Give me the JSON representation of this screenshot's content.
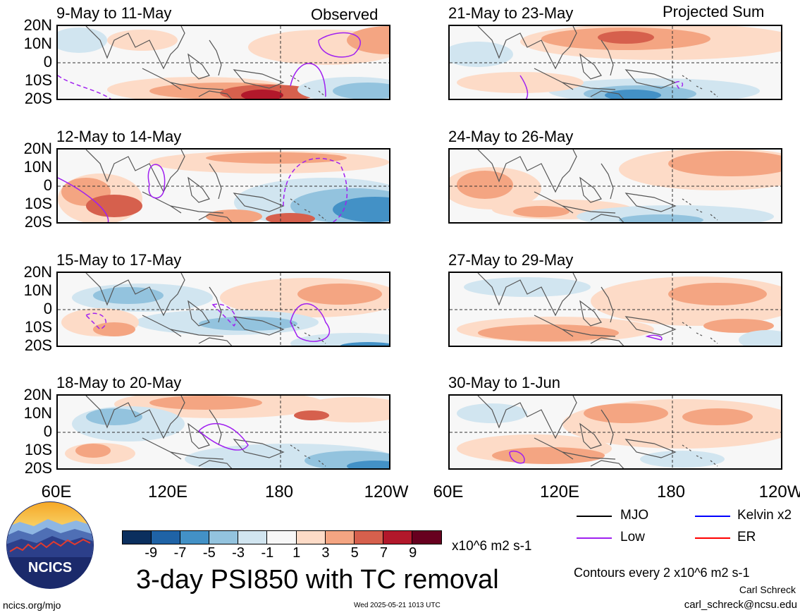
{
  "corner_labels": {
    "observed": "Observed",
    "projected": "Projected Sum"
  },
  "y_ticks": [
    "20N",
    "10N",
    "0",
    "10S",
    "20S"
  ],
  "x_ticks": [
    "60E",
    "120E",
    "180",
    "120W"
  ],
  "panels_left": [
    {
      "title": "9-May to 11-May"
    },
    {
      "title": "12-May to 14-May"
    },
    {
      "title": "15-May to 17-May"
    },
    {
      "title": "18-May to 20-May"
    }
  ],
  "panels_right": [
    {
      "title": "21-May to 23-May"
    },
    {
      "title": "24-May to 26-May"
    },
    {
      "title": "27-May to 29-May"
    },
    {
      "title": "30-May to 1-Jun"
    }
  ],
  "colorbar": {
    "labels": [
      "-9",
      "-7",
      "-5",
      "-3",
      "-1",
      "1",
      "3",
      "5",
      "7",
      "9"
    ],
    "colors": [
      "#0b2f5e",
      "#1f63a6",
      "#4391c6",
      "#93c3de",
      "#d1e5f0",
      "#f7f7f7",
      "#fddbc7",
      "#f4a582",
      "#d6604d",
      "#b2182b",
      "#67001f"
    ],
    "units": "x10^6 m2 s-1"
  },
  "legend": {
    "mjo": {
      "label": "MJO",
      "color": "#000000"
    },
    "kelvin": {
      "label": "Kelvin x2",
      "color": "#0000ff"
    },
    "low": {
      "label": "Low",
      "color": "#a020f0"
    },
    "er": {
      "label": "ER",
      "color": "#ff0000"
    }
  },
  "title": "3-day PSI850 with TC removal",
  "contour_note": "Contours every 2 x10^6 m2 s-1",
  "author": "Carl Schreck",
  "email": "carl_schreck@ncsu.edu",
  "website": "ncics.org/mjo",
  "timestamp": "Wed 2025-05-21 1013 UTC",
  "logo_text": "NCICS"
}
